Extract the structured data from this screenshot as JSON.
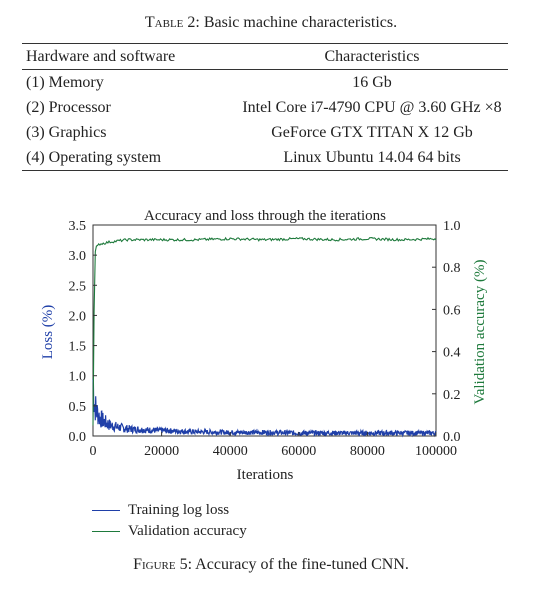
{
  "table": {
    "caption_label": "Table 2:",
    "caption_text": " Basic machine characteristics.",
    "headers": [
      "Hardware and software",
      "Characteristics"
    ],
    "rows": [
      [
        "(1) Memory",
        "16 Gb"
      ],
      [
        "(2) Processor",
        "Intel Core i7-4790 CPU @ 3.60 GHz ×8"
      ],
      [
        "(3) Graphics",
        "GeForce GTX TITAN X 12 Gb"
      ],
      [
        "(4) Operating system",
        "Linux Ubuntu 14.04 64 bits"
      ]
    ]
  },
  "figure": {
    "caption_label": "Figure 5:",
    "caption_text": " Accuracy of the fine-tuned CNN."
  },
  "chart_data": {
    "type": "line",
    "title": "Accuracy and loss through the iterations",
    "xlabel": "Iterations",
    "ylabel_left": "Loss (%)",
    "ylabel_right": "Validation accuracy (%)",
    "xlim": [
      0,
      100000
    ],
    "ylim_left": [
      0,
      3.5
    ],
    "ylim_right": [
      0,
      1.0
    ],
    "x_ticks": [
      "0",
      "20000",
      "40000",
      "60000",
      "80000",
      "100000"
    ],
    "y_left_ticks": [
      "0.0",
      "0.5",
      "1.0",
      "1.5",
      "2.0",
      "2.5",
      "3.0",
      "3.5"
    ],
    "y_right_ticks": [
      "0.0",
      "0.2",
      "0.4",
      "0.6",
      "0.8",
      "1.0"
    ],
    "grid": false,
    "legend_position": "bottom-left",
    "series": [
      {
        "name": "Training log loss",
        "axis": "left",
        "color": "#1f3fa8",
        "x": [
          0,
          300,
          600,
          1000,
          1500,
          2000,
          3000,
          4000,
          5000,
          7000,
          10000,
          15000,
          20000,
          25000,
          30000,
          40000,
          50000,
          60000,
          70000,
          80000,
          90000,
          100000
        ],
        "values": [
          0.95,
          0.6,
          0.5,
          0.42,
          0.36,
          0.3,
          0.25,
          0.21,
          0.18,
          0.15,
          0.12,
          0.1,
          0.09,
          0.08,
          0.07,
          0.06,
          0.06,
          0.05,
          0.05,
          0.05,
          0.05,
          0.05
        ]
      },
      {
        "name": "Validation accuracy",
        "axis": "right",
        "color": "#1e7a3c",
        "x": [
          0,
          500,
          1000,
          2000,
          5000,
          10000,
          20000,
          30000,
          40000,
          50000,
          60000,
          70000,
          80000,
          90000,
          100000
        ],
        "values": [
          0.05,
          0.86,
          0.9,
          0.91,
          0.92,
          0.93,
          0.93,
          0.93,
          0.935,
          0.93,
          0.935,
          0.93,
          0.935,
          0.93,
          0.935
        ]
      }
    ]
  }
}
